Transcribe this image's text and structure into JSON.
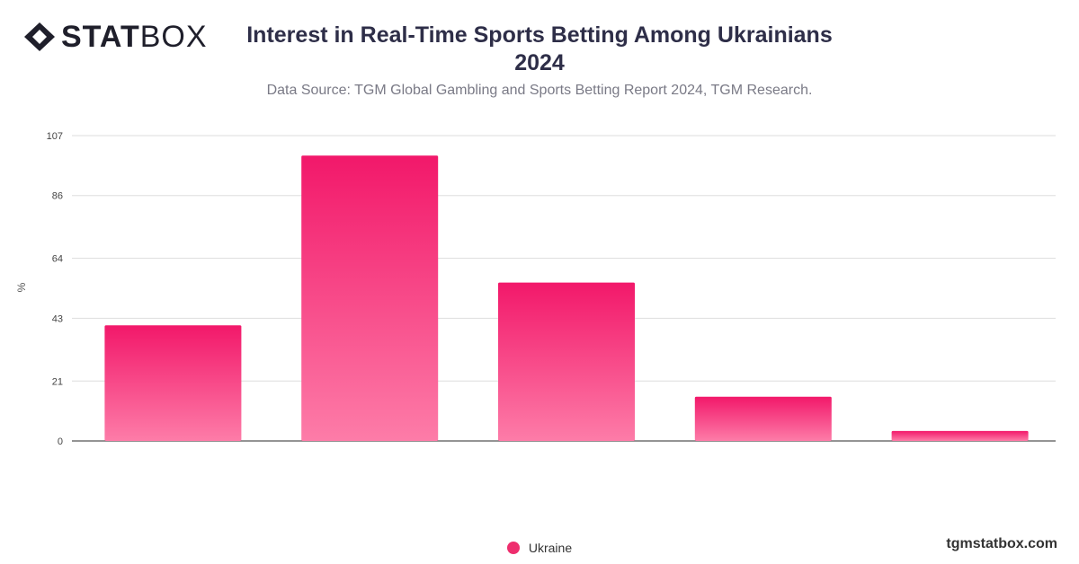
{
  "brand": {
    "logo_bold": "STAT",
    "logo_light": "BOX",
    "watermark": "tgmstatbox.com"
  },
  "colors": {
    "bar_top": "#f2186a",
    "bar_bottom": "#fd7ca8",
    "legend": "#ee2e6e",
    "grid": "#dddddd"
  },
  "chart_data": {
    "type": "bar",
    "title": "Interest in Real-Time Sports Betting Among Ukrainians 2024",
    "subtitle": "Data Source: TGM Global Gambling and Sports Betting Report 2024, TGM Research.",
    "ylabel": "%",
    "xlabel": "",
    "ylim": [
      0,
      107
    ],
    "yticks": [
      "0",
      "21",
      "43",
      "64",
      "86",
      "107"
    ],
    "categories": [
      "",
      "",
      "",
      "",
      ""
    ],
    "series": [
      {
        "name": "Ukraine",
        "values": [
          40.5,
          100,
          55.5,
          15.5,
          3.5
        ]
      }
    ],
    "legend": "bottom-center",
    "grid": true
  }
}
